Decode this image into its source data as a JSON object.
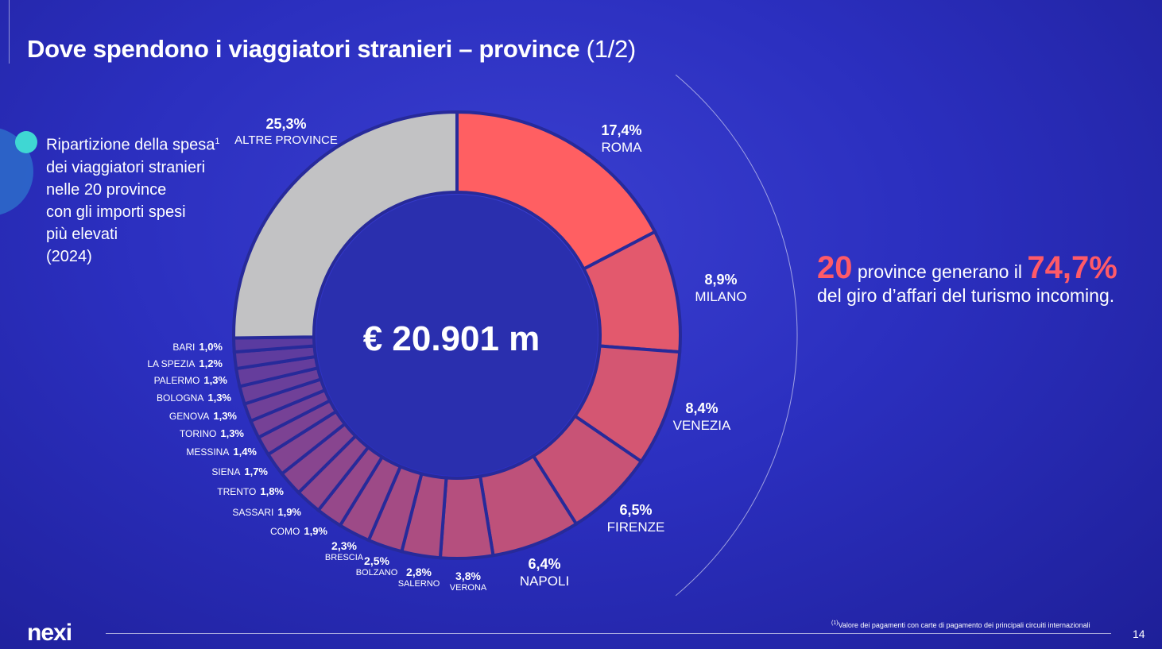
{
  "title": {
    "main": "Dove spendono i viaggiatori stranieri – province",
    "suffix": "(1/2)"
  },
  "description": {
    "text": "Ripartizione della spesa",
    "footnote_mark": "1",
    "lines": [
      "dei viaggiatori stranieri",
      "nelle 20 province",
      "con gli importi spesi",
      "più elevati",
      "(2024)"
    ]
  },
  "center_total": "€ 20.901 m",
  "highlight": {
    "count": "20",
    "text1": "province generano il",
    "share": "74,7%",
    "text2": "del giro d’affari del turismo incoming."
  },
  "footer": {
    "logo": "nexi",
    "note_mark": "(1)",
    "note": "Valore dei pagamenti con carte di pagamento dei principali circuiti internazionali",
    "page": "14"
  },
  "chart_data": {
    "type": "pie",
    "donut": true,
    "start": "top, clockwise",
    "categories": [
      "ROMA",
      "MILANO",
      "VENEZIA",
      "FIRENZE",
      "NAPOLI",
      "VERONA",
      "SALERNO",
      "BOLZANO",
      "BRESCIA",
      "COMO",
      "SASSARI",
      "TRENTO",
      "SIENA",
      "MESSINA",
      "TORINO",
      "GENOVA",
      "BOLOGNA",
      "PALERMO",
      "LA SPEZIA",
      "BARI",
      "ALTRE PROVINCE"
    ],
    "values": [
      17.4,
      8.9,
      8.4,
      6.5,
      6.4,
      3.8,
      2.8,
      2.5,
      2.3,
      1.9,
      1.9,
      1.8,
      1.7,
      1.4,
      1.3,
      1.3,
      1.3,
      1.3,
      1.2,
      1.0,
      25.3
    ],
    "labels": [
      "17,4%",
      "8,9%",
      "8,4%",
      "6,5%",
      "6,4%",
      "3,8%",
      "2,8%",
      "2,5%",
      "2,3%",
      "1,9%",
      "1,9%",
      "1,8%",
      "1,7%",
      "1,4%",
      "1,3%",
      "1,3%",
      "1,3%",
      "1,3%",
      "1,2%",
      "1,0%",
      "25,3%"
    ],
    "colors": {
      "top": "#ff5f62",
      "bottom": "#5a3ba0",
      "other": "#c2c2c4"
    }
  }
}
